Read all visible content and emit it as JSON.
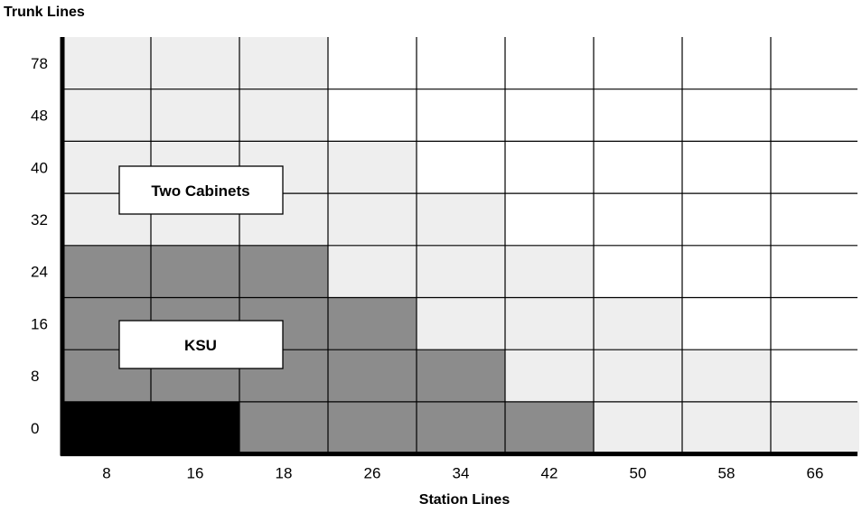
{
  "chart_data": {
    "type": "heatmap",
    "title": "",
    "xlabel": "Station Lines",
    "ylabel": "Trunk Lines",
    "x_ticks": [
      "8",
      "16",
      "18",
      "26",
      "34",
      "42",
      "50",
      "58",
      "66"
    ],
    "y_ticks": [
      "0",
      "8",
      "16",
      "24",
      "32",
      "40",
      "48",
      "78"
    ],
    "legend": {
      "black": "#000000",
      "ksu": "#8c8c8c",
      "two_cabinets": "#eeeeee",
      "empty": "#ffffff"
    },
    "cells": [
      [
        "black",
        "black",
        "ksu",
        "ksu",
        "ksu",
        "ksu",
        "two_cabinets",
        "two_cabinets",
        "two_cabinets"
      ],
      [
        "ksu",
        "ksu",
        "ksu",
        "ksu",
        "ksu",
        "two_cabinets",
        "two_cabinets",
        "two_cabinets",
        "empty"
      ],
      [
        "ksu",
        "ksu",
        "ksu",
        "ksu",
        "two_cabinets",
        "two_cabinets",
        "two_cabinets",
        "empty",
        "empty"
      ],
      [
        "ksu",
        "ksu",
        "ksu",
        "two_cabinets",
        "two_cabinets",
        "two_cabinets",
        "empty",
        "empty",
        "empty"
      ],
      [
        "two_cabinets",
        "two_cabinets",
        "two_cabinets",
        "two_cabinets",
        "two_cabinets",
        "empty",
        "empty",
        "empty",
        "empty"
      ],
      [
        "two_cabinets",
        "two_cabinets",
        "two_cabinets",
        "two_cabinets",
        "empty",
        "empty",
        "empty",
        "empty",
        "empty"
      ],
      [
        "two_cabinets",
        "two_cabinets",
        "two_cabinets",
        "empty",
        "empty",
        "empty",
        "empty",
        "empty",
        "empty"
      ],
      [
        "two_cabinets",
        "two_cabinets",
        "two_cabinets",
        "empty",
        "empty",
        "empty",
        "empty",
        "empty",
        "empty"
      ]
    ],
    "regions": [
      {
        "id": "two-cabinets",
        "label": "Two Cabinets"
      },
      {
        "id": "ksu",
        "label": "KSU"
      }
    ]
  }
}
